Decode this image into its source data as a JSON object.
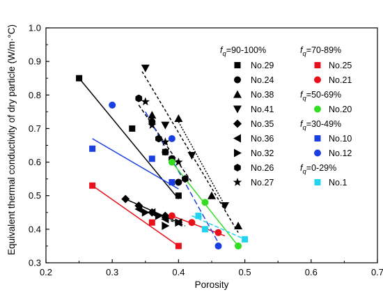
{
  "chart_data": {
    "type": "scatter",
    "xlabel": "Porosity",
    "ylabel": "Equivalent thermal conductivity of dry particle (W/m·°C)",
    "xlim": [
      0.2,
      0.7
    ],
    "ylim": [
      0.3,
      1.0
    ],
    "xticks": [
      "0.2",
      "0.3",
      "0.4",
      "0.5",
      "0.6",
      "0.7"
    ],
    "yticks": [
      "0.3",
      "0.4",
      "0.5",
      "0.6",
      "0.7",
      "0.8",
      "0.9",
      "1.0"
    ],
    "grid": false,
    "legend_position": "top-right",
    "legend_groups": [
      {
        "f_symbol": "f",
        "f_sub": "q",
        "range": "=90-100%"
      },
      {
        "f_symbol": "f",
        "f_sub": "q",
        "range": "=70-89%"
      },
      {
        "f_symbol": "f",
        "f_sub": "q",
        "range": "=50-69%"
      },
      {
        "f_symbol": "f",
        "f_sub": "q",
        "range": "=30-49%"
      },
      {
        "f_symbol": "f",
        "f_sub": "q",
        "range": "=0-29%"
      }
    ],
    "series": [
      {
        "name": "No.29",
        "marker": "square",
        "color": "#000000",
        "line": "solid",
        "x": [
          0.25,
          0.33,
          0.38,
          0.4
        ],
        "y": [
          0.85,
          0.7,
          0.63,
          0.5
        ]
      },
      {
        "name": "No.24",
        "marker": "circle",
        "color": "#000000",
        "line": "dashed",
        "x": [
          0.34,
          0.36,
          0.38,
          0.4
        ],
        "y": [
          0.79,
          0.72,
          0.63,
          0.54
        ]
      },
      {
        "name": "No.38",
        "marker": "triangle-up",
        "color": "#000000",
        "line": "dotted",
        "x": [
          0.36,
          0.4,
          0.45,
          0.49
        ],
        "y": [
          0.74,
          0.73,
          0.5,
          0.41
        ]
      },
      {
        "name": "No.41",
        "marker": "triangle-down",
        "color": "#000000",
        "line": "dashed",
        "x": [
          0.35,
          0.38,
          0.42,
          0.47
        ],
        "y": [
          0.88,
          0.71,
          0.62,
          0.47
        ]
      },
      {
        "name": "No.35",
        "marker": "diamond",
        "color": "#000000",
        "line": "solid",
        "x": [
          0.32,
          0.34,
          0.36,
          0.38
        ],
        "y": [
          0.49,
          0.47,
          0.45,
          0.44
        ]
      },
      {
        "name": "No.36",
        "marker": "triangle-left",
        "color": "#000000",
        "line": "dashed",
        "x": [
          0.34,
          0.36,
          0.38,
          0.4
        ],
        "y": [
          0.46,
          0.45,
          0.43,
          0.42
        ]
      },
      {
        "name": "No.32",
        "marker": "triangle-right",
        "color": "#000000",
        "line": "dashed",
        "x": [
          0.35,
          0.37,
          0.38,
          0.4
        ],
        "y": [
          0.45,
          0.44,
          0.41,
          0.42
        ]
      },
      {
        "name": "No.26",
        "marker": "hexagon",
        "color": "#000000",
        "line": "dashed",
        "x": [
          0.34,
          0.37,
          0.39,
          0.41
        ],
        "y": [
          0.79,
          0.67,
          0.61,
          0.55
        ]
      },
      {
        "name": "No.27",
        "marker": "star",
        "color": "#000000",
        "line": "dashed",
        "x": [
          0.35,
          0.36,
          0.38,
          0.4
        ],
        "y": [
          0.78,
          0.71,
          0.66,
          0.6
        ]
      },
      {
        "name": "No.25",
        "marker": "square",
        "color": "#e8101a",
        "line": "solid",
        "x": [
          0.27,
          0.36,
          0.4
        ],
        "y": [
          0.53,
          0.42,
          0.35
        ]
      },
      {
        "name": "No.21",
        "marker": "circle",
        "color": "#e8101a",
        "line": "solid",
        "x": [
          0.39,
          0.42,
          0.46
        ],
        "y": [
          0.44,
          0.42,
          0.39
        ]
      },
      {
        "name": "No.20",
        "marker": "circle",
        "color": "#33dd22",
        "line": "solid",
        "x": [
          0.39,
          0.44,
          0.49
        ],
        "y": [
          0.6,
          0.48,
          0.35
        ]
      },
      {
        "name": "No.10",
        "marker": "square",
        "color": "#1a3fe0",
        "line": "solid",
        "x": [
          0.27,
          0.36,
          0.39
        ],
        "y": [
          0.64,
          0.61,
          0.54
        ]
      },
      {
        "name": "No.12",
        "marker": "circle",
        "color": "#1a3fe0",
        "line": "solid",
        "x": [
          0.3,
          0.39,
          0.46
        ],
        "y": [
          0.77,
          0.67,
          0.35
        ]
      },
      {
        "name": "No.1",
        "marker": "square",
        "color": "#22d3f0",
        "line": "dashed",
        "x": [
          0.43,
          0.44,
          0.5
        ],
        "y": [
          0.44,
          0.4,
          0.37
        ]
      }
    ],
    "fits": [
      {
        "color": "#000000",
        "dash": "",
        "x": [
          0.25,
          0.4
        ],
        "y": [
          0.85,
          0.49
        ]
      },
      {
        "color": "#000000",
        "dash": "",
        "x": [
          0.32,
          0.4
        ],
        "y": [
          0.49,
          0.42
        ]
      },
      {
        "color": "#000000",
        "dash": "5,3",
        "x": [
          0.34,
          0.42
        ],
        "y": [
          0.77,
          0.54
        ]
      },
      {
        "color": "#000000",
        "dash": "4,3",
        "x": [
          0.345,
          0.49
        ],
        "y": [
          0.87,
          0.39
        ]
      },
      {
        "color": "#000000",
        "dash": "2,2",
        "x": [
          0.4,
          0.47
        ],
        "y": [
          0.72,
          0.47
        ]
      },
      {
        "color": "#000000",
        "dash": "4,3",
        "x": [
          0.34,
          0.41
        ],
        "y": [
          0.46,
          0.41
        ]
      },
      {
        "color": "#e8101a",
        "dash": "",
        "x": [
          0.27,
          0.4
        ],
        "y": [
          0.53,
          0.35
        ]
      },
      {
        "color": "#e8101a",
        "dash": "",
        "x": [
          0.39,
          0.47
        ],
        "y": [
          0.44,
          0.38
        ]
      },
      {
        "color": "#1a3fe0",
        "dash": "",
        "x": [
          0.27,
          0.4
        ],
        "y": [
          0.67,
          0.52
        ]
      },
      {
        "color": "#1a3fe0",
        "dash": "8,4",
        "x": [
          0.35,
          0.46
        ],
        "y": [
          0.75,
          0.36
        ]
      },
      {
        "color": "#33dd22",
        "dash": "",
        "x": [
          0.39,
          0.49
        ],
        "y": [
          0.6,
          0.35
        ]
      },
      {
        "color": "#22d3f0",
        "dash": "6,3",
        "x": [
          0.42,
          0.5
        ],
        "y": [
          0.44,
          0.37
        ]
      }
    ]
  }
}
